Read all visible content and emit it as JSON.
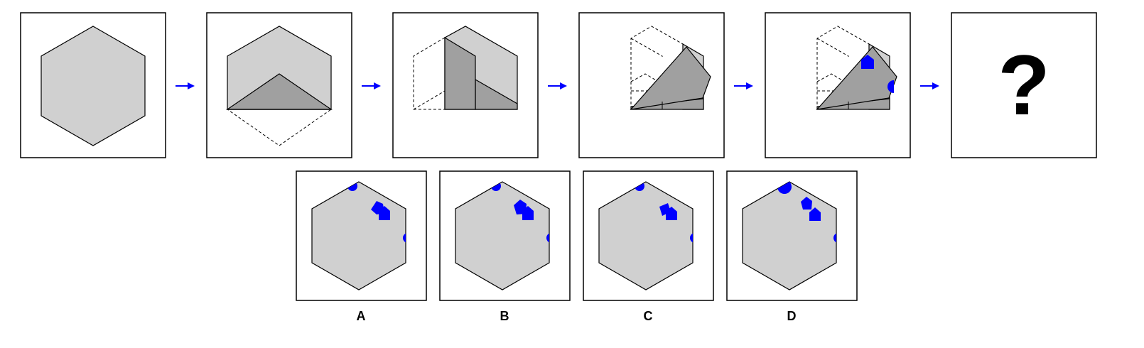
{
  "colors": {
    "paper": "#d0d0d0",
    "fold": "#a0a0a0",
    "mark": "#0000ff",
    "arrow": "#0000ff"
  },
  "question_mark": "?",
  "options": [
    {
      "label": "A"
    },
    {
      "label": "B"
    },
    {
      "label": "C"
    },
    {
      "label": "D"
    }
  ]
}
